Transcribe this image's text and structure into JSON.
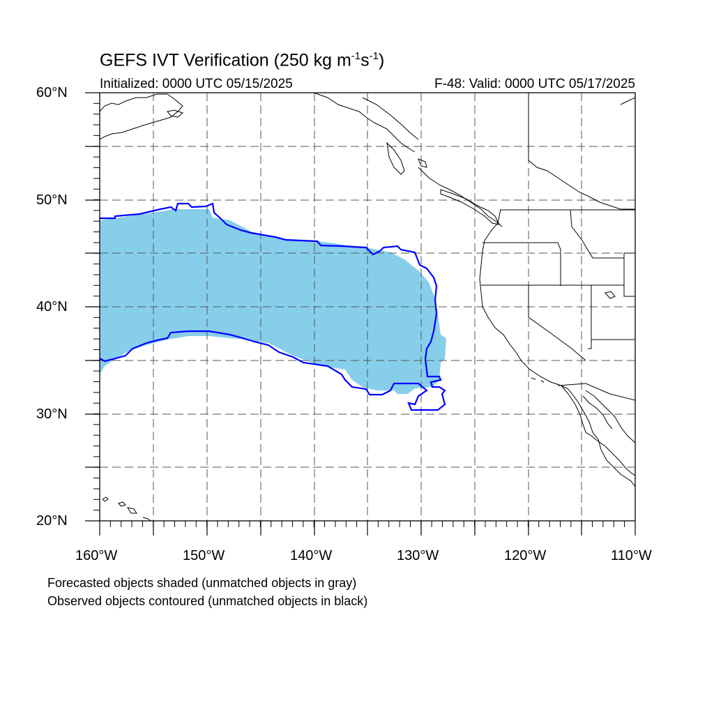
{
  "title": {
    "main": "GEFS IVT Verification (250 kg m",
    "exp1": "-1",
    "mid": "s",
    "exp2": "-1",
    "close": ")"
  },
  "initialized": "Initialized: 0000 UTC 05/15/2025",
  "valid": "F-48: Valid: 0000 UTC 05/17/2025",
  "map": {
    "lon_range": [
      -160,
      -110
    ],
    "lat_range": [
      20,
      60
    ],
    "lat_labels": [
      "60°N",
      "50°N",
      "40°N",
      "30°N",
      "20°N"
    ],
    "lon_labels": [
      "160°W",
      "150°W",
      "140°W",
      "130°W",
      "120°W",
      "110°W"
    ],
    "grid": "dashed every 5°",
    "colors": {
      "forecast_fill": "#87ceeb",
      "observed_contour": "#0000ff",
      "coastline": "#000000"
    },
    "forecast_object": "shaded atmospheric river region, approx 33–49°N, 160–128°W",
    "observed_object": "blue contour, approx 31–50°N, 160–128°W"
  },
  "footer": {
    "line1": "Forecasted objects shaded (unmatched objects in gray)",
    "line2": "Observed objects contoured (unmatched objects in black)"
  }
}
